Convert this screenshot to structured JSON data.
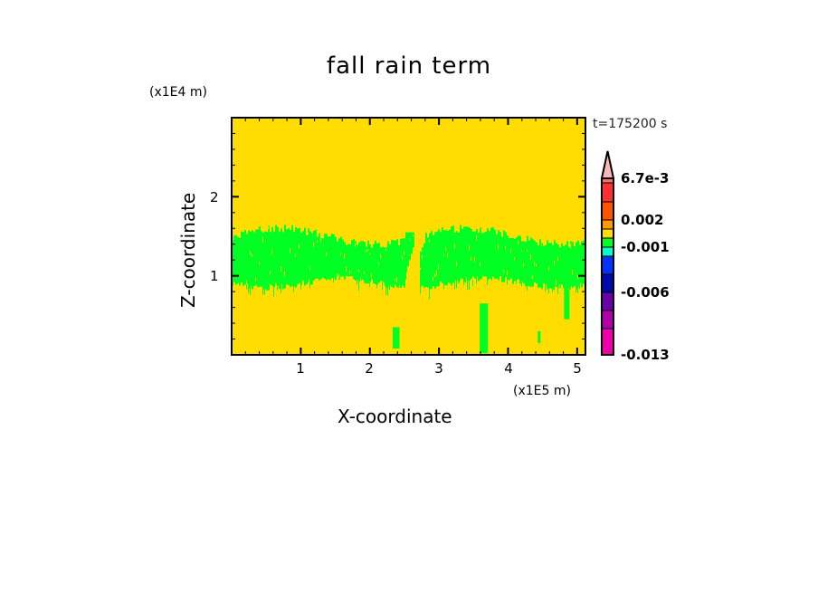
{
  "chart_data": {
    "type": "heatmap",
    "title": "fall rain term",
    "xlabel": "X-coordinate",
    "ylabel": "Z-coordinate",
    "x_unit": "(x1E5 m)",
    "y_unit": "(x1E4 m)",
    "time_label": "t=175200 s",
    "xlim": [
      0,
      5.12
    ],
    "ylim": [
      0,
      3.0
    ],
    "x_ticks": [
      "1",
      "2",
      "3",
      "4",
      "5"
    ],
    "y_ticks": [
      "1",
      "2"
    ],
    "background_color": "#ffdd00",
    "feature_color": "#00ff22",
    "colorbar": {
      "labels": [
        "6.7e-3",
        "0.002",
        "-0.001",
        "-0.006",
        "-0.013"
      ],
      "colors_top_to_bottom": [
        "#f8b8b8",
        "#f07070",
        "#ff3030",
        "#ff5500",
        "#ff9900",
        "#ffdd00",
        "#00ff22",
        "#00ffcc",
        "#0033ff",
        "#000aa8",
        "#6a00a8",
        "#b000a8",
        "#ee00aa"
      ],
      "extend": "max"
    }
  }
}
